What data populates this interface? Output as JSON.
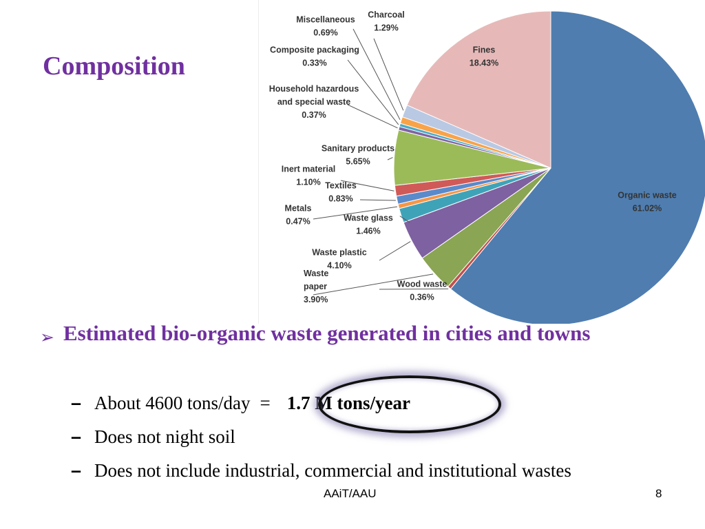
{
  "slide": {
    "title": "Composition",
    "bullet": "Estimated bio-organic waste generated in cities and towns",
    "sub_items": [
      {
        "dash": "–",
        "text": "About 4600 tons/day",
        "equals": "=",
        "highlight": "1.7 M tons/year"
      },
      {
        "dash": "–",
        "text": "Does not night soil"
      },
      {
        "dash": "–",
        "text": "Does not include industrial, commercial and institutional wastes"
      }
    ],
    "footer": "AAiT/AAU",
    "page_number": "8"
  },
  "chart_data": {
    "type": "pie",
    "title": "",
    "slices": [
      {
        "label": "Organic waste",
        "value": 61.02,
        "display": "61.02%",
        "color": "#4F7DAF"
      },
      {
        "label": "Wood waste",
        "value": 0.36,
        "display": "0.36%",
        "color": "#C0504D"
      },
      {
        "label": "Waste paper",
        "value": 3.9,
        "display": "3.90%",
        "color": "#8AA553"
      },
      {
        "label": "Waste plastic",
        "value": 4.1,
        "display": "4.10%",
        "color": "#7E61A1"
      },
      {
        "label": "Waste glass",
        "value": 1.46,
        "display": "1.46%",
        "color": "#3FA3B8"
      },
      {
        "label": "Metals",
        "value": 0.47,
        "display": "0.47%",
        "color": "#F79646"
      },
      {
        "label": "Textiles",
        "value": 0.83,
        "display": "0.83%",
        "color": "#5B8ACB"
      },
      {
        "label": "Inert material",
        "value": 1.1,
        "display": "1.10%",
        "color": "#D05A57"
      },
      {
        "label": "Sanitary products",
        "value": 5.65,
        "display": "5.65%",
        "color": "#9BBB59"
      },
      {
        "label": "Household hazardous and special waste",
        "value": 0.37,
        "display": "0.37%",
        "color": "#8064A2"
      },
      {
        "label": "Composite packaging",
        "value": 0.33,
        "display": "0.33%",
        "color": "#4BACC6"
      },
      {
        "label": "Miscellaneous",
        "value": 0.69,
        "display": "0.69%",
        "color": "#F9A349"
      },
      {
        "label": "Charcoal",
        "value": 1.29,
        "display": "1.29%",
        "color": "#B9C9E4"
      },
      {
        "label": "Fines",
        "value": 18.43,
        "display": "18.43%",
        "color": "#E6B9B8"
      }
    ],
    "label_lines": [
      [
        "Organic waste",
        "61.02%"
      ],
      [
        "Wood waste",
        "0.36%"
      ],
      [
        "Waste",
        "paper",
        "3.90%"
      ],
      [
        "Waste plastic",
        "4.10%"
      ],
      [
        "Waste glass",
        "1.46%"
      ],
      [
        "Metals",
        "0.47%"
      ],
      [
        "Textiles",
        "0.83%"
      ],
      [
        "Inert material",
        "1.10%"
      ],
      [
        "Sanitary products",
        "5.65%"
      ],
      [
        "Household hazardous",
        "and special waste",
        "0.37%"
      ],
      [
        "Composite packaging",
        "0.33%"
      ],
      [
        "Miscellaneous",
        "0.69%"
      ],
      [
        "Charcoal",
        "1.29%"
      ],
      [
        "Fines",
        "18.43%"
      ]
    ]
  }
}
